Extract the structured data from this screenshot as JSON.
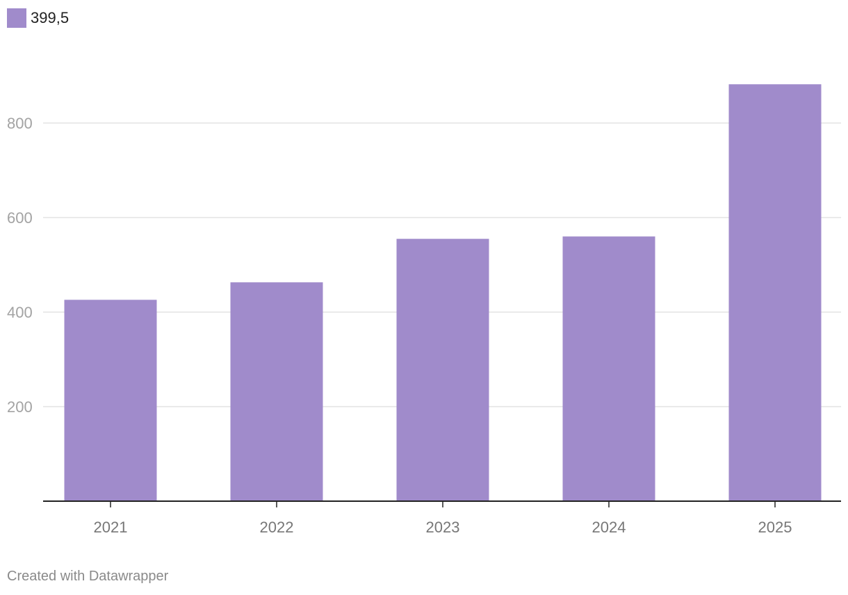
{
  "chart_data": {
    "type": "bar",
    "categories": [
      "2021",
      "2022",
      "2023",
      "2024",
      "2025"
    ],
    "series": [
      {
        "name": "399,5",
        "values": [
          426,
          463,
          555,
          560,
          882
        ]
      }
    ],
    "title": "",
    "xlabel": "",
    "ylabel": "",
    "ylim": [
      0,
      960
    ],
    "yticks": [
      200,
      400,
      600,
      800
    ],
    "grid": true,
    "legend": "top-left",
    "colors": {
      "bar": "#a08bcb",
      "grid": "#e3e3e3",
      "axis": "#222222"
    }
  },
  "legend": {
    "label": "399,5"
  },
  "footer": {
    "credit": "Created with Datawrapper"
  }
}
